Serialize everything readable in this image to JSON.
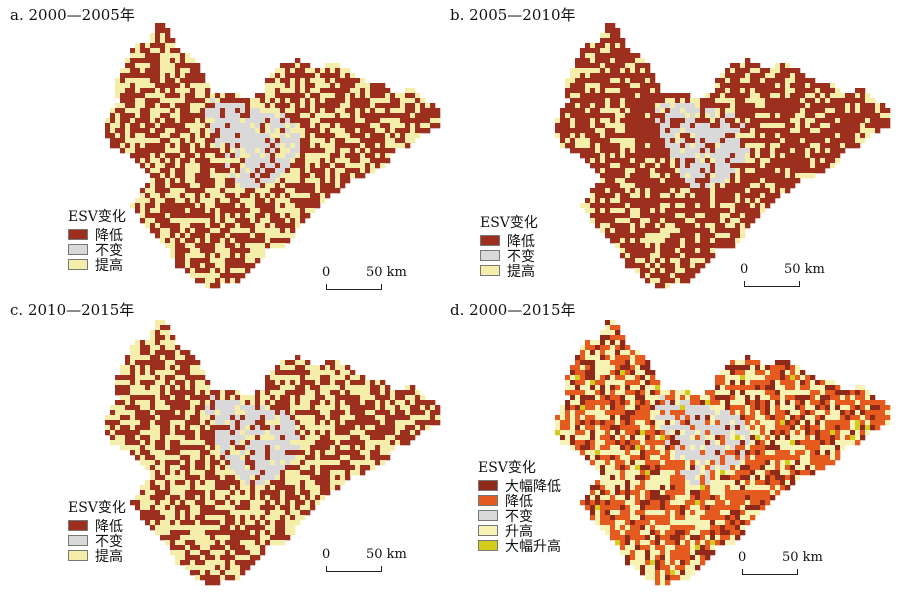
{
  "colors": {
    "decrease": "#9c2f1e",
    "unchanged": "#d9d9d9",
    "increase": "#f4eeaa",
    "large_decrease": "#8f2a1b",
    "decrease_d": "#e55a1f",
    "increase_d": "#f7f3b4",
    "large_increase": "#d4cc1a"
  },
  "panels": [
    {
      "title": "a. 2000—2005年",
      "legend_title": "ESV变化",
      "legend": [
        {
          "label": "降低",
          "color": "#9c2f1e"
        },
        {
          "label": "不变",
          "color": "#d9d9d9"
        },
        {
          "label": "提高",
          "color": "#f4eeaa"
        }
      ],
      "scale": {
        "zero": "0",
        "distance": "50 km"
      },
      "mix": {
        "decrease": 0.55,
        "unchanged": 0.0,
        "increase": 0.45
      }
    },
    {
      "title": "b. 2005—2010年",
      "legend_title": "ESV变化",
      "legend": [
        {
          "label": "降低",
          "color": "#9c2f1e"
        },
        {
          "label": "不变",
          "color": "#d9d9d9"
        },
        {
          "label": "提高",
          "color": "#f4eeaa"
        }
      ],
      "scale": {
        "zero": "0",
        "distance": "50 km"
      },
      "mix": {
        "decrease": 0.7,
        "unchanged": 0.0,
        "increase": 0.3
      }
    },
    {
      "title": "c. 2010—2015年",
      "legend_title": "ESV变化",
      "legend": [
        {
          "label": "降低",
          "color": "#9c2f1e"
        },
        {
          "label": "不变",
          "color": "#d9d9d9"
        },
        {
          "label": "提高",
          "color": "#f4eeaa"
        }
      ],
      "scale": {
        "zero": "0",
        "distance": "50 km"
      },
      "mix": {
        "decrease": 0.5,
        "unchanged": 0.0,
        "increase": 0.5
      }
    },
    {
      "title": "d. 2000—2015年",
      "legend_title": "ESV变化",
      "legend": [
        {
          "label": "大幅降低",
          "color": "#8f2a1b"
        },
        {
          "label": "降低",
          "color": "#e55a1f"
        },
        {
          "label": "不变",
          "color": "#d9d9d9"
        },
        {
          "label": "升高",
          "color": "#f7f3b4"
        },
        {
          "label": "大幅升高",
          "color": "#d4cc1a"
        }
      ],
      "scale": {
        "zero": "0",
        "distance": "50 km"
      },
      "mix": {
        "decrease": 0.62,
        "unchanged": 0.0,
        "increase": 0.38
      }
    }
  ]
}
